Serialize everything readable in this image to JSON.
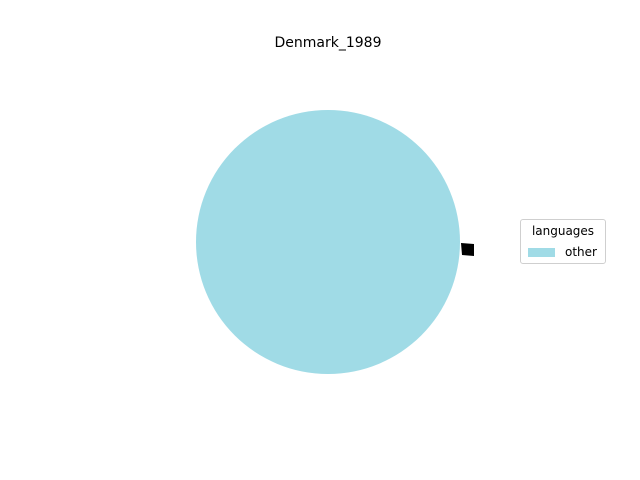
{
  "chart_data": {
    "type": "pie",
    "title": "Denmark_1989",
    "categories": [
      "other"
    ],
    "values": [
      100
    ],
    "colors": [
      "#a0dbe6"
    ],
    "legend": {
      "title": "languages",
      "placement": "center-right",
      "entries": [
        "other"
      ]
    }
  }
}
